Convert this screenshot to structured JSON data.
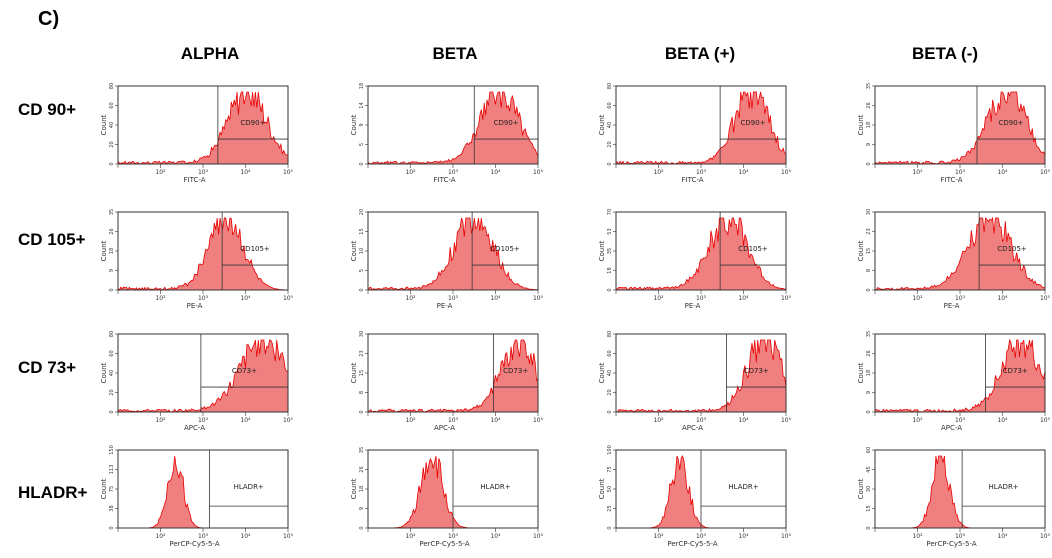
{
  "panel_label": "C)",
  "columns": [
    "ALPHA",
    "BETA",
    "BETA (+)",
    "BETA (-)"
  ],
  "rows": [
    {
      "label": "CD 90+",
      "channel": "FITC-A",
      "gate": "CD90+"
    },
    {
      "label": "CD 105+",
      "channel": "PE-A",
      "gate": "CD105+"
    },
    {
      "label": "CD 73+",
      "channel": "APC-A",
      "gate": "CD73+"
    },
    {
      "label": "HLADR+",
      "channel": "PerCP-Cy5-5-A",
      "gate": "HLADR+"
    }
  ],
  "colors": {
    "fill": "#f08080",
    "line": "#e80000",
    "frame": "#333333",
    "gate": "#333333"
  },
  "chart_data": [
    {
      "type": "area",
      "row": "CD 90+",
      "column": "ALPHA",
      "xlabel": "FITC-A",
      "ylabel": "Count",
      "x_scale": "log",
      "xlim": [
        10,
        100000
      ],
      "peak_log10": 4.05,
      "spread": 0.45,
      "ylim": [
        0,
        80
      ],
      "gate": {
        "label": "CD90+",
        "x_log10": [
          3.35,
          5.0
        ]
      }
    },
    {
      "type": "area",
      "row": "CD 90+",
      "column": "BETA",
      "xlabel": "FITC-A",
      "ylabel": "Count",
      "x_scale": "log",
      "xlim": [
        10,
        100000
      ],
      "peak_log10": 4.1,
      "spread": 0.45,
      "ylim": [
        0,
        18
      ],
      "gate": {
        "label": "CD90+",
        "x_log10": [
          3.5,
          5.0
        ]
      }
    },
    {
      "type": "area",
      "row": "CD 90+",
      "column": "BETA (+)",
      "xlabel": "FITC-A",
      "ylabel": "Count",
      "x_scale": "log",
      "xlim": [
        10,
        100000
      ],
      "peak_log10": 4.2,
      "spread": 0.4,
      "ylim": [
        0,
        80
      ],
      "gate": {
        "label": "CD90+",
        "x_log10": [
          3.45,
          5.0
        ]
      }
    },
    {
      "type": "area",
      "row": "CD 90+",
      "column": "BETA (-)",
      "xlabel": "FITC-A",
      "ylabel": "Count",
      "x_scale": "log",
      "xlim": [
        10,
        100000
      ],
      "peak_log10": 4.1,
      "spread": 0.45,
      "ylim": [
        0,
        35
      ],
      "gate": {
        "label": "CD90+",
        "x_log10": [
          3.4,
          5.0
        ]
      }
    },
    {
      "type": "area",
      "row": "CD 105+",
      "column": "ALPHA",
      "xlabel": "PE-A",
      "ylabel": "Count",
      "x_scale": "log",
      "xlim": [
        10,
        100000
      ],
      "peak_log10": 3.55,
      "spread": 0.4,
      "ylim": [
        0,
        35
      ],
      "gate": {
        "label": "CD105+",
        "x_log10": [
          3.45,
          5.0
        ]
      }
    },
    {
      "type": "area",
      "row": "CD 105+",
      "column": "BETA",
      "xlabel": "PE-A",
      "ylabel": "Count",
      "x_scale": "log",
      "xlim": [
        10,
        100000
      ],
      "peak_log10": 3.5,
      "spread": 0.45,
      "ylim": [
        0,
        20
      ],
      "gate": {
        "label": "CD105+",
        "x_log10": [
          3.45,
          5.0
        ]
      }
    },
    {
      "type": "area",
      "row": "CD 105+",
      "column": "BETA (+)",
      "xlabel": "PE-A",
      "ylabel": "Count",
      "x_scale": "log",
      "xlim": [
        10,
        100000
      ],
      "peak_log10": 3.65,
      "spread": 0.45,
      "ylim": [
        0,
        70
      ],
      "gate": {
        "label": "CD105+",
        "x_log10": [
          3.45,
          5.0
        ]
      }
    },
    {
      "type": "area",
      "row": "CD 105+",
      "column": "BETA (-)",
      "xlabel": "PE-A",
      "ylabel": "Count",
      "x_scale": "log",
      "xlim": [
        10,
        100000
      ],
      "peak_log10": 3.7,
      "spread": 0.5,
      "ylim": [
        0,
        30
      ],
      "gate": {
        "label": "CD105+",
        "x_log10": [
          3.45,
          5.0
        ]
      }
    },
    {
      "type": "area",
      "row": "CD 73+",
      "column": "ALPHA",
      "xlabel": "APC-A",
      "ylabel": "Count",
      "x_scale": "log",
      "xlim": [
        10,
        100000
      ],
      "peak_log10": 4.45,
      "spread": 0.55,
      "ylim": [
        0,
        80
      ],
      "gate": {
        "label": "CD73+",
        "x_log10": [
          2.95,
          5.0
        ]
      }
    },
    {
      "type": "area",
      "row": "CD 73+",
      "column": "BETA",
      "xlabel": "APC-A",
      "ylabel": "Count",
      "x_scale": "log",
      "xlim": [
        10,
        100000
      ],
      "peak_log10": 4.55,
      "spread": 0.4,
      "ylim": [
        0,
        30
      ],
      "gate": {
        "label": "CD73+",
        "x_log10": [
          3.95,
          5.0
        ]
      }
    },
    {
      "type": "area",
      "row": "CD 73+",
      "column": "BETA (+)",
      "xlabel": "APC-A",
      "ylabel": "Count",
      "x_scale": "log",
      "xlim": [
        10,
        100000
      ],
      "peak_log10": 4.5,
      "spread": 0.4,
      "ylim": [
        0,
        80
      ],
      "gate": {
        "label": "CD73+",
        "x_log10": [
          3.6,
          5.0
        ]
      }
    },
    {
      "type": "area",
      "row": "CD 73+",
      "column": "BETA (-)",
      "xlabel": "APC-A",
      "ylabel": "Count",
      "x_scale": "log",
      "xlim": [
        10,
        100000
      ],
      "peak_log10": 4.45,
      "spread": 0.45,
      "ylim": [
        0,
        35
      ],
      "gate": {
        "label": "CD73+",
        "x_log10": [
          3.6,
          5.0
        ]
      }
    },
    {
      "type": "area",
      "row": "HLADR+",
      "column": "ALPHA",
      "xlabel": "PerCP-Cy5-5-A",
      "ylabel": "Count",
      "x_scale": "log",
      "xlim": [
        10,
        100000
      ],
      "peak_log10": 2.35,
      "spread": 0.18,
      "ylim": [
        0,
        150
      ],
      "gate": {
        "label": "HLADR+",
        "x_log10": [
          3.15,
          5.0
        ]
      }
    },
    {
      "type": "area",
      "row": "HLADR+",
      "column": "BETA",
      "xlabel": "PerCP-Cy5-5-A",
      "ylabel": "Count",
      "x_scale": "log",
      "xlim": [
        10,
        100000
      ],
      "peak_log10": 2.5,
      "spread": 0.25,
      "ylim": [
        0,
        35
      ],
      "gate": {
        "label": "HLADR+",
        "x_log10": [
          3.0,
          5.0
        ]
      }
    },
    {
      "type": "area",
      "row": "HLADR+",
      "column": "BETA (+)",
      "xlabel": "PerCP-Cy5-5-A",
      "ylabel": "Count",
      "x_scale": "log",
      "xlim": [
        10,
        100000
      ],
      "peak_log10": 2.5,
      "spread": 0.2,
      "ylim": [
        0,
        100
      ],
      "gate": {
        "label": "HLADR+",
        "x_log10": [
          3.0,
          5.0
        ]
      }
    },
    {
      "type": "area",
      "row": "HLADR+",
      "column": "BETA (-)",
      "xlabel": "PerCP-Cy5-5-A",
      "ylabel": "Count",
      "x_scale": "log",
      "xlim": [
        10,
        100000
      ],
      "peak_log10": 2.55,
      "spread": 0.2,
      "ylim": [
        0,
        60
      ],
      "gate": {
        "label": "HLADR+",
        "x_log10": [
          3.05,
          5.0
        ]
      }
    }
  ]
}
